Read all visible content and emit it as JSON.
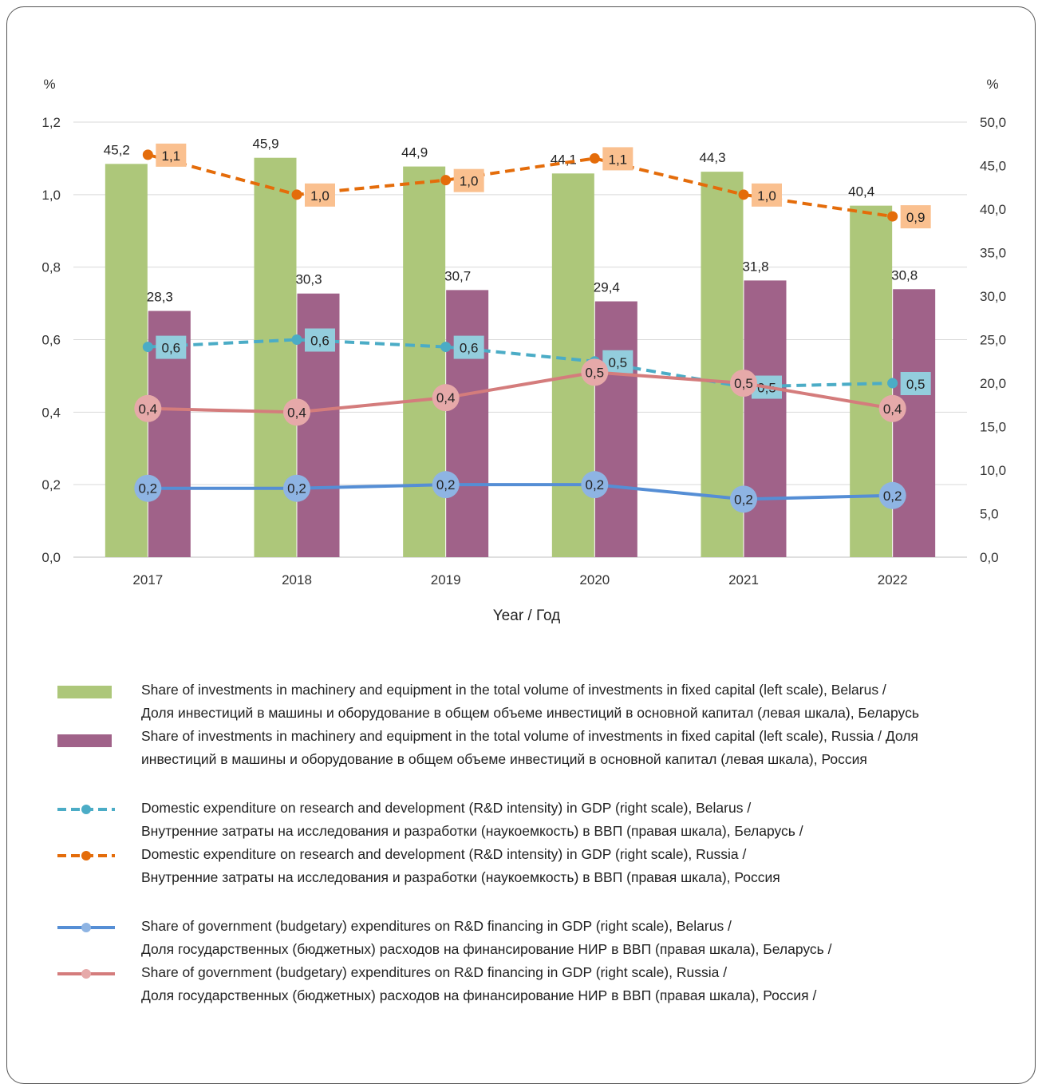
{
  "chart_data": {
    "type": "bar",
    "categories": [
      "2017",
      "2018",
      "2019",
      "2020",
      "2021",
      "2022"
    ],
    "xlabel": "Year / Год",
    "y_left_unit": "%",
    "y_right_unit": "%",
    "y_left_ticks": [
      "0,0",
      "0,2",
      "0,4",
      "0,6",
      "0,8",
      "1,0",
      "1,2"
    ],
    "y_left_lim": [
      0,
      1.2
    ],
    "y_right_ticks": [
      "0,0",
      "5,0",
      "10,0",
      "15,0",
      "20,0",
      "25,0",
      "30,0",
      "35,0",
      "40,0",
      "45,0",
      "50,0"
    ],
    "y_right_lim": [
      0,
      50
    ],
    "grid": true,
    "bar_series": [
      {
        "key": "inv_by",
        "color": "#adc77a",
        "values": [
          45.2,
          45.9,
          44.9,
          44.1,
          44.3,
          40.4
        ],
        "labels": [
          "45,2",
          "45,9",
          "44,9",
          "44,1",
          "44,3",
          "40,4"
        ]
      },
      {
        "key": "inv_ru",
        "color": "#a06289",
        "values": [
          28.3,
          30.3,
          30.7,
          29.4,
          31.8,
          30.8
        ],
        "labels": [
          "28,3",
          "30,3",
          "30,7",
          "29,4",
          "31,8",
          "30,8"
        ]
      }
    ],
    "line_series": [
      {
        "key": "rd_by",
        "color": "#4bacc6",
        "label_bg": "#93cddd",
        "dashed": true,
        "values": [
          0.58,
          0.6,
          0.58,
          0.54,
          0.47,
          0.48
        ],
        "labels": [
          "0,6",
          "0,6",
          "0,6",
          "0,5",
          "0,5",
          "0,5"
        ]
      },
      {
        "key": "rd_ru",
        "color": "#e46c0a",
        "label_bg": "#fac08f",
        "dashed": true,
        "values": [
          1.11,
          1.0,
          1.04,
          1.1,
          1.0,
          0.94
        ],
        "labels": [
          "1,1",
          "1,0",
          "1,0",
          "1,1",
          "1,0",
          "0,9"
        ]
      },
      {
        "key": "gov_by",
        "color": "#558ed5",
        "marker_color": "#8eb4e3",
        "dashed": false,
        "values": [
          0.19,
          0.19,
          0.2,
          0.2,
          0.16,
          0.17
        ],
        "labels": [
          "0,2",
          "0,2",
          "0,2",
          "0,2",
          "0,2",
          "0,2"
        ]
      },
      {
        "key": "gov_ru",
        "color": "#d47c7c",
        "marker_color": "#e6a9a9",
        "dashed": false,
        "values": [
          0.41,
          0.4,
          0.44,
          0.51,
          0.48,
          0.41
        ],
        "labels": [
          "0,4",
          "0,4",
          "0,4",
          "0,5",
          "0,5",
          "0,4"
        ]
      }
    ]
  },
  "legend": {
    "inv_by": {
      "line1": "Share of investments in machinery and equipment in the total volume of investments in fixed capital (left scale), Belarus /",
      "line2": "Доля инвестиций в машины и оборудование в общем объеме инвестиций в основной капитал (левая шкала), Беларусь"
    },
    "inv_ru": {
      "line1": "Share of investments in machinery and equipment in the total volume of investments in fixed capital (left scale), Russia / Доля",
      "line2": "инвестиций в машины и оборудование в общем объеме инвестиций в основной капитал (левая шкала), Россия"
    },
    "rd_by": {
      "line1": "Domestic expenditure on research and development (R&D intensity) in GDP (right scale), Belarus /",
      "line2": "Внутренние затраты на исследования  и разработки (наукоемкость) в ВВП (правая шкала), Беларусь /"
    },
    "rd_ru": {
      "line1": "Domestic expenditure on research and development (R&D intensity) in GDP (right scale), Russia /",
      "line2": "Внутренние затраты на исследования  и разработки (наукоемкость) в ВВП (правая шкала), Россия"
    },
    "gov_by": {
      "line1": "Share of government (budgetary) expenditures on R&D financing in GDP (right scale), Belarus /",
      "line2": "Доля государственных (бюджетных) расходов на финансирование НИР в ВВП (правая шкала), Беларусь /"
    },
    "gov_ru": {
      "line1": "Share of government (budgetary) expenditures on R&D financing in GDP (right scale), Russia /",
      "line2": "Доля государственных (бюджетных) расходов на финансирование НИР в ВВП (правая шкала), Россия /"
    }
  }
}
